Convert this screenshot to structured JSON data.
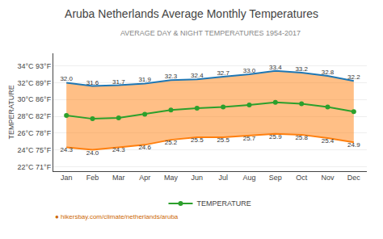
{
  "chart_data": {
    "type": "line",
    "title": "Aruba Netherlands Average Monthly Temperatures",
    "subtitle": "AVERAGE DAY & NIGHT TEMPERATURES 1954-2017",
    "y_label": "TEMPERATURE",
    "categories": [
      "Jan",
      "Feb",
      "Mar",
      "Apr",
      "May",
      "Jun",
      "Jul",
      "Aug",
      "Sep",
      "Oct",
      "Nov",
      "Dec"
    ],
    "series": [
      {
        "type": "area",
        "data_labels": true,
        "values": [
          32.0,
          31.6,
          31.7,
          31.9,
          32.3,
          32.4,
          32.7,
          33.0,
          33.4,
          33.2,
          32.8,
          32.2
        ],
        "value_labels": [
          "32.0",
          "31.6",
          "31.7",
          "31.9",
          "32.3",
          "32.4",
          "32.7",
          "33.0",
          "33.4",
          "33.2",
          "32.8",
          "32.2"
        ]
      },
      {
        "type": "area",
        "data_labels": true,
        "values": [
          24.3,
          24.0,
          24.3,
          24.6,
          25.2,
          25.5,
          25.5,
          25.7,
          25.9,
          25.8,
          25.4,
          24.9
        ],
        "value_labels": [
          "24.3",
          "24.0",
          "24.3",
          "24.6",
          "25.2",
          "25.5",
          "25.5",
          "25.7",
          "25.9",
          "25.8",
          "25.4",
          "24.9"
        ]
      },
      {
        "name": "TEMPERATURE",
        "type": "line",
        "marker": "circle",
        "values": [
          28.1,
          27.7,
          27.8,
          28.25,
          28.75,
          28.95,
          29.1,
          29.35,
          29.65,
          29.5,
          29.1,
          28.55
        ]
      }
    ],
    "ylim": [
      21.5,
      35.5
    ],
    "yticks": [
      {
        "value": 22,
        "label": "22°C 71°F"
      },
      {
        "value": 24,
        "label": "24°C 75°F"
      },
      {
        "value": 26,
        "label": "26°C 78°F"
      },
      {
        "value": 28,
        "label": "28°C 82°F"
      },
      {
        "value": 30,
        "label": "30°C 86°F"
      },
      {
        "value": 32,
        "label": "32°C 89°F"
      },
      {
        "value": 34,
        "label": "34°C 93°F"
      }
    ],
    "grid": true,
    "legend": "bottom",
    "annotations": [
      "● hikersbay.com/climate/netherlands/aruba"
    ]
  }
}
